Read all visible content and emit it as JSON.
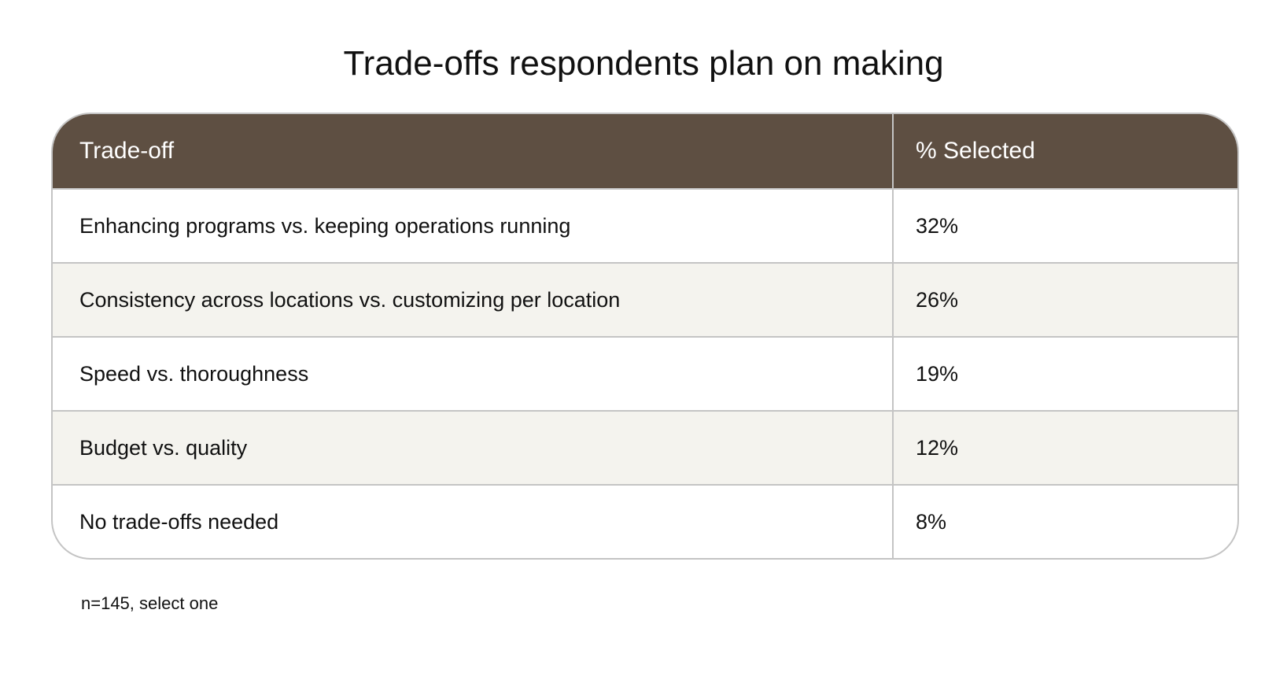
{
  "title": "Trade-offs respondents plan on making",
  "table": {
    "headers": [
      "Trade-off",
      "% Selected"
    ],
    "rows": [
      {
        "label": "Enhancing programs vs. keeping operations running",
        "value": "32%"
      },
      {
        "label": "Consistency across locations vs. customizing per location",
        "value": "26%"
      },
      {
        "label": "Speed vs. thoroughness",
        "value": "19%"
      },
      {
        "label": "Budget vs. quality",
        "value": "12%"
      },
      {
        "label": "No trade-offs needed",
        "value": "8%"
      }
    ]
  },
  "footnote": "n=145, select one",
  "colors": {
    "header_bg": "#5e4f42",
    "alt_row_bg": "#f4f3ee",
    "border": "#c4c4c4"
  }
}
